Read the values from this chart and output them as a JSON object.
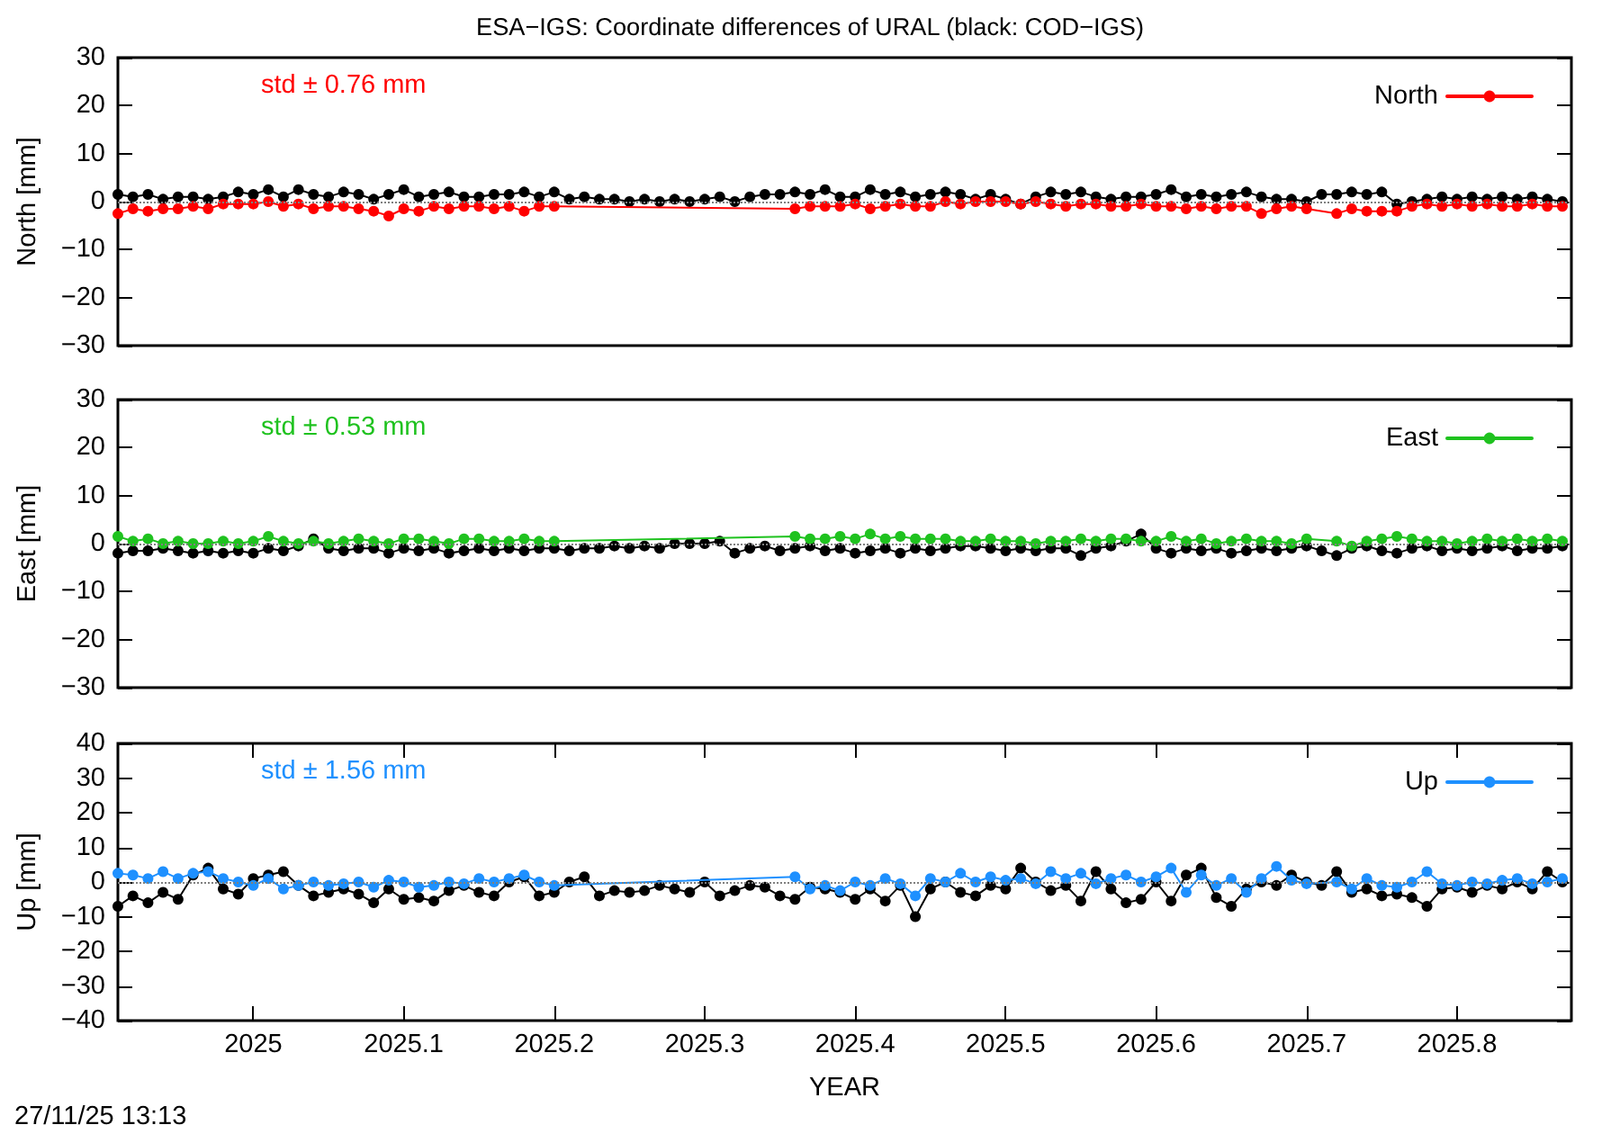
{
  "chart_data": [
    {
      "type": "line",
      "title": "ESA−IGS: Coordinate differences of URAL (black: COD−IGS)",
      "ylabel": "North [mm]",
      "annotations": [
        "std ± 0.76 mm"
      ],
      "tick_labels": "y",
      "marker": "circle",
      "line_style": "solid",
      "legend": "top right",
      "xlim": [
        2024.91,
        2025.876
      ],
      "ylim": [
        -30,
        30
      ],
      "yticks": [
        -30,
        -20,
        -10,
        0,
        10,
        20,
        30
      ],
      "ref_lines": [
        {
          "axis": "y",
          "value": 0,
          "color": "#808080",
          "line_style": "dotted"
        }
      ],
      "x": [
        2024.91,
        2024.92,
        2024.93,
        2024.94,
        2024.95,
        2024.96,
        2024.97,
        2024.98,
        2024.99,
        2025,
        2025.01,
        2025.02,
        2025.03,
        2025.04,
        2025.05,
        2025.06,
        2025.07,
        2025.08,
        2025.09,
        2025.1,
        2025.11,
        2025.12,
        2025.13,
        2025.14,
        2025.15,
        2025.16,
        2025.17,
        2025.18,
        2025.19,
        2025.2,
        2025.21,
        2025.22,
        2025.23,
        2025.24,
        2025.25,
        2025.26,
        2025.27,
        2025.28,
        2025.29,
        2025.3,
        2025.31,
        2025.32,
        2025.33,
        2025.34,
        2025.35,
        2025.36,
        2025.37,
        2025.38,
        2025.39,
        2025.4,
        2025.41,
        2025.42,
        2025.43,
        2025.44,
        2025.45,
        2025.46,
        2025.47,
        2025.48,
        2025.49,
        2025.5,
        2025.51,
        2025.52,
        2025.53,
        2025.54,
        2025.55,
        2025.56,
        2025.57,
        2025.58,
        2025.59,
        2025.6,
        2025.61,
        2025.62,
        2025.63,
        2025.64,
        2025.65,
        2025.66,
        2025.67,
        2025.68,
        2025.69,
        2025.7,
        2025.71,
        2025.72,
        2025.73,
        2025.74,
        2025.75,
        2025.76,
        2025.77,
        2025.78,
        2025.79,
        2025.8,
        2025.81,
        2025.82,
        2025.83,
        2025.84,
        2025.85,
        2025.86,
        2025.87
      ],
      "series": [
        {
          "color": "#000000",
          "values": [
            1.5,
            1,
            1.5,
            0.5,
            1,
            1,
            0.5,
            1,
            2,
            1.5,
            2.5,
            1,
            2.5,
            1.5,
            1,
            2,
            1.5,
            0.5,
            1.5,
            2.5,
            1,
            1.5,
            2,
            1,
            1,
            1.5,
            1.5,
            2,
            1,
            2,
            0.5,
            1,
            0.5,
            0.5,
            0,
            0.5,
            0,
            0.5,
            0,
            0.5,
            1,
            0,
            1,
            1.5,
            1.5,
            2,
            1.5,
            2.5,
            1,
            1,
            2.5,
            1.5,
            2,
            1,
            1.5,
            2,
            1.5,
            0.5,
            1.5,
            0.5,
            -0.5,
            1,
            2,
            1.5,
            2,
            1,
            0.5,
            1,
            1,
            1.5,
            2.5,
            1,
            1.5,
            1,
            1.5,
            2,
            1,
            0.5,
            0.5,
            0,
            1.5,
            1.5,
            2,
            1.5,
            2,
            -0.5,
            0,
            0.5,
            1,
            0.5,
            1,
            0.5,
            1,
            0.5,
            1,
            0.5,
            0
          ]
        },
        {
          "name": "North",
          "color": "#ff0000",
          "x": [
            2024.91,
            2024.92,
            2024.93,
            2024.94,
            2024.95,
            2024.96,
            2024.97,
            2024.98,
            2024.99,
            2025,
            2025.01,
            2025.02,
            2025.03,
            2025.04,
            2025.05,
            2025.06,
            2025.07,
            2025.08,
            2025.09,
            2025.1,
            2025.11,
            2025.12,
            2025.13,
            2025.14,
            2025.15,
            2025.16,
            2025.17,
            2025.18,
            2025.19,
            2025.2,
            2025.36,
            2025.37,
            2025.38,
            2025.39,
            2025.4,
            2025.41,
            2025.42,
            2025.43,
            2025.44,
            2025.45,
            2025.46,
            2025.47,
            2025.48,
            2025.49,
            2025.5,
            2025.51,
            2025.52,
            2025.53,
            2025.54,
            2025.55,
            2025.56,
            2025.57,
            2025.58,
            2025.59,
            2025.6,
            2025.61,
            2025.62,
            2025.63,
            2025.64,
            2025.65,
            2025.66,
            2025.67,
            2025.68,
            2025.69,
            2025.7,
            2025.72,
            2025.73,
            2025.74,
            2025.75,
            2025.76,
            2025.77,
            2025.78,
            2025.79,
            2025.8,
            2025.81,
            2025.82,
            2025.83,
            2025.84,
            2025.85,
            2025.86,
            2025.87
          ],
          "values": [
            -2.5,
            -1.5,
            -2,
            -1.5,
            -1.5,
            -1,
            -1.5,
            -0.5,
            -0.5,
            -0.5,
            0,
            -1,
            -0.5,
            -1.5,
            -1,
            -1,
            -1.5,
            -2,
            -3,
            -1.5,
            -2,
            -1,
            -1.5,
            -1,
            -1,
            -1.5,
            -1,
            -2,
            -1,
            -1,
            -1.5,
            -1,
            -1,
            -1,
            -0.5,
            -1.5,
            -1,
            -0.5,
            -1,
            -1,
            0,
            -0.5,
            0,
            0,
            0,
            -0.5,
            0,
            -0.5,
            -1,
            -0.5,
            -0.5,
            -1,
            -1,
            -0.5,
            -1,
            -1,
            -1.5,
            -1,
            -1.5,
            -1,
            -1,
            -2.5,
            -1.5,
            -1,
            -1.5,
            -2.5,
            -1.5,
            -2,
            -2,
            -2,
            -1,
            -0.5,
            -1,
            -0.5,
            -1,
            -0.5,
            -1,
            -1,
            -0.5,
            -1,
            -1
          ]
        }
      ]
    },
    {
      "type": "line",
      "ylabel": "East [mm]",
      "annotations": [
        "std ± 0.53 mm"
      ],
      "tick_labels": "y",
      "marker": "circle",
      "line_style": "solid",
      "legend": "top right",
      "xlim": [
        2024.91,
        2025.876
      ],
      "ylim": [
        -30,
        30
      ],
      "yticks": [
        -30,
        -20,
        -10,
        0,
        10,
        20,
        30
      ],
      "ref_lines": [
        {
          "axis": "y",
          "value": 0,
          "color": "#808080",
          "line_style": "dotted"
        }
      ],
      "x": [
        2024.91,
        2024.92,
        2024.93,
        2024.94,
        2024.95,
        2024.96,
        2024.97,
        2024.98,
        2024.99,
        2025,
        2025.01,
        2025.02,
        2025.03,
        2025.04,
        2025.05,
        2025.06,
        2025.07,
        2025.08,
        2025.09,
        2025.1,
        2025.11,
        2025.12,
        2025.13,
        2025.14,
        2025.15,
        2025.16,
        2025.17,
        2025.18,
        2025.19,
        2025.2,
        2025.21,
        2025.22,
        2025.23,
        2025.24,
        2025.25,
        2025.26,
        2025.27,
        2025.28,
        2025.29,
        2025.3,
        2025.31,
        2025.32,
        2025.33,
        2025.34,
        2025.35,
        2025.36,
        2025.37,
        2025.38,
        2025.39,
        2025.4,
        2025.41,
        2025.42,
        2025.43,
        2025.44,
        2025.45,
        2025.46,
        2025.47,
        2025.48,
        2025.49,
        2025.5,
        2025.51,
        2025.52,
        2025.53,
        2025.54,
        2025.55,
        2025.56,
        2025.57,
        2025.58,
        2025.59,
        2025.6,
        2025.61,
        2025.62,
        2025.63,
        2025.64,
        2025.65,
        2025.66,
        2025.67,
        2025.68,
        2025.69,
        2025.7,
        2025.71,
        2025.72,
        2025.73,
        2025.74,
        2025.75,
        2025.76,
        2025.77,
        2025.78,
        2025.79,
        2025.8,
        2025.81,
        2025.82,
        2025.83,
        2025.84,
        2025.85,
        2025.86,
        2025.87
      ],
      "series": [
        {
          "color": "#000000",
          "values": [
            -2,
            -1.5,
            -1.5,
            -1,
            -1.5,
            -2,
            -1.5,
            -2,
            -1.5,
            -2,
            -1,
            -1.5,
            -0.5,
            1,
            -1,
            -1.5,
            -1,
            -1,
            -2,
            -1,
            -1.5,
            -1,
            -2,
            -1.5,
            -1,
            -1.5,
            -1,
            -1.5,
            -1,
            -1,
            -1.5,
            -1,
            -1,
            -0.5,
            -1,
            -0.5,
            -1,
            0,
            0,
            0,
            0.5,
            -2,
            -1,
            -0.5,
            -1.5,
            -1,
            -0.5,
            -1.5,
            -1,
            -2,
            -1.5,
            -1,
            -2,
            -1,
            -1.5,
            -1,
            -0.5,
            -0.5,
            -1,
            -1.5,
            -1,
            -1.5,
            -1,
            -1,
            -2.5,
            -1,
            -0.5,
            0.5,
            2,
            -1,
            -2,
            -1,
            -1.5,
            -1,
            -2,
            -1.5,
            -1,
            -1.5,
            -1,
            -0.5,
            -1.5,
            -2.5,
            -1,
            -0.5,
            -1.5,
            -2,
            -1,
            -0.5,
            -1.5,
            -1,
            -1.5,
            -1,
            -0.5,
            -1.5,
            -1,
            -1,
            -0.5
          ]
        },
        {
          "name": "East",
          "color": "#1fc21f",
          "x": [
            2024.91,
            2024.92,
            2024.93,
            2024.94,
            2024.95,
            2024.96,
            2024.97,
            2024.98,
            2024.99,
            2025,
            2025.01,
            2025.02,
            2025.03,
            2025.04,
            2025.05,
            2025.06,
            2025.07,
            2025.08,
            2025.09,
            2025.1,
            2025.11,
            2025.12,
            2025.13,
            2025.14,
            2025.15,
            2025.16,
            2025.17,
            2025.18,
            2025.19,
            2025.2,
            2025.36,
            2025.37,
            2025.38,
            2025.39,
            2025.4,
            2025.41,
            2025.42,
            2025.43,
            2025.44,
            2025.45,
            2025.46,
            2025.47,
            2025.48,
            2025.49,
            2025.5,
            2025.51,
            2025.52,
            2025.53,
            2025.54,
            2025.55,
            2025.56,
            2025.57,
            2025.58,
            2025.59,
            2025.6,
            2025.61,
            2025.62,
            2025.63,
            2025.64,
            2025.65,
            2025.66,
            2025.67,
            2025.68,
            2025.69,
            2025.7,
            2025.72,
            2025.73,
            2025.74,
            2025.75,
            2025.76,
            2025.77,
            2025.78,
            2025.79,
            2025.8,
            2025.81,
            2025.82,
            2025.83,
            2025.84,
            2025.85,
            2025.86,
            2025.87
          ],
          "values": [
            1.5,
            0.5,
            1,
            0,
            0.5,
            0,
            0,
            0.5,
            0,
            0.5,
            1.5,
            0.5,
            0,
            0.5,
            0,
            0.5,
            1,
            0.5,
            0,
            1,
            1,
            0.5,
            0,
            1,
            1,
            0.5,
            0.5,
            1,
            0.5,
            0.5,
            1.5,
            1,
            1,
            1.5,
            1,
            2,
            1,
            1.5,
            1,
            1,
            1,
            0.5,
            0.5,
            1,
            0.5,
            0.5,
            0,
            0.5,
            0.5,
            1,
            0.5,
            1,
            1,
            0.5,
            0.5,
            1.5,
            0.5,
            1,
            0,
            0.5,
            1,
            0.5,
            0.5,
            0,
            1,
            0.5,
            -0.5,
            0.5,
            1,
            1.5,
            1,
            0.5,
            0.5,
            0,
            0.5,
            1,
            0.5,
            1,
            0.5,
            1,
            0.5
          ]
        }
      ]
    },
    {
      "type": "line",
      "xlabel": "YEAR",
      "ylabel": "Up [mm]",
      "annotations": [
        "std ± 1.56 mm",
        "27/11/25 13:13"
      ],
      "marker": "circle",
      "line_style": "solid",
      "legend": "top right",
      "xlim": [
        2024.91,
        2025.876
      ],
      "xticks": [
        2025,
        2025.1,
        2025.2,
        2025.3,
        2025.4,
        2025.5,
        2025.6,
        2025.7,
        2025.8
      ],
      "ylim": [
        -40,
        40
      ],
      "yticks": [
        -40,
        -30,
        -20,
        -10,
        0,
        10,
        20,
        30,
        40
      ],
      "ref_lines": [
        {
          "axis": "y",
          "value": 0,
          "color": "#808080",
          "line_style": "dotted"
        }
      ],
      "x": [
        2024.91,
        2024.92,
        2024.93,
        2024.94,
        2024.95,
        2024.96,
        2024.97,
        2024.98,
        2024.99,
        2025,
        2025.01,
        2025.02,
        2025.03,
        2025.04,
        2025.05,
        2025.06,
        2025.07,
        2025.08,
        2025.09,
        2025.1,
        2025.11,
        2025.12,
        2025.13,
        2025.14,
        2025.15,
        2025.16,
        2025.17,
        2025.18,
        2025.19,
        2025.2,
        2025.21,
        2025.22,
        2025.23,
        2025.24,
        2025.25,
        2025.26,
        2025.27,
        2025.28,
        2025.29,
        2025.3,
        2025.31,
        2025.32,
        2025.33,
        2025.34,
        2025.35,
        2025.36,
        2025.37,
        2025.38,
        2025.39,
        2025.4,
        2025.41,
        2025.42,
        2025.43,
        2025.44,
        2025.45,
        2025.46,
        2025.47,
        2025.48,
        2025.49,
        2025.5,
        2025.51,
        2025.52,
        2025.53,
        2025.54,
        2025.55,
        2025.56,
        2025.57,
        2025.58,
        2025.59,
        2025.6,
        2025.61,
        2025.62,
        2025.63,
        2025.64,
        2025.65,
        2025.66,
        2025.67,
        2025.68,
        2025.69,
        2025.7,
        2025.71,
        2025.72,
        2025.73,
        2025.74,
        2025.75,
        2025.76,
        2025.77,
        2025.78,
        2025.79,
        2025.8,
        2025.81,
        2025.82,
        2025.83,
        2025.84,
        2025.85,
        2025.86,
        2025.87
      ],
      "series": [
        {
          "color": "#000000",
          "values": [
            -7,
            -4,
            -6,
            -3,
            -5,
            2,
            4,
            -2,
            -3.5,
            1,
            2,
            3,
            -1,
            -4,
            -3,
            -2,
            -3.5,
            -6,
            -2,
            -5,
            -4.5,
            -5.5,
            -2.5,
            -1,
            -3,
            -4,
            0,
            1.5,
            -4,
            -3,
            0,
            1.5,
            -4,
            -2.5,
            -3,
            -2.5,
            -1,
            -2,
            -3,
            0,
            -4,
            -2.5,
            -1,
            -1.5,
            -4,
            -5,
            -1.5,
            -2,
            -3,
            -5,
            -2,
            -5.5,
            -1,
            -10,
            -2,
            0,
            -3,
            -4,
            -1,
            -2,
            4,
            0,
            -2.5,
            -1,
            -5.5,
            3,
            -2,
            -6,
            -5,
            0,
            -5.5,
            2,
            4,
            -4.5,
            -7,
            -2,
            0,
            -1,
            2,
            0,
            -1,
            3,
            -3,
            -2,
            -4,
            -3.5,
            -4.5,
            -7,
            -2,
            -1.5,
            -3,
            -1,
            -2,
            0,
            -2,
            3,
            0
          ]
        },
        {
          "name": "Up",
          "color": "#1e90ff",
          "x": [
            2024.91,
            2024.92,
            2024.93,
            2024.94,
            2024.95,
            2024.96,
            2024.97,
            2024.98,
            2024.99,
            2025,
            2025.01,
            2025.02,
            2025.03,
            2025.04,
            2025.05,
            2025.06,
            2025.07,
            2025.08,
            2025.09,
            2025.1,
            2025.11,
            2025.12,
            2025.13,
            2025.14,
            2025.15,
            2025.16,
            2025.17,
            2025.18,
            2025.19,
            2025.2,
            2025.36,
            2025.37,
            2025.38,
            2025.39,
            2025.4,
            2025.41,
            2025.42,
            2025.43,
            2025.44,
            2025.45,
            2025.46,
            2025.47,
            2025.48,
            2025.49,
            2025.5,
            2025.51,
            2025.52,
            2025.53,
            2025.54,
            2025.55,
            2025.56,
            2025.57,
            2025.58,
            2025.59,
            2025.6,
            2025.61,
            2025.62,
            2025.63,
            2025.64,
            2025.65,
            2025.66,
            2025.67,
            2025.68,
            2025.69,
            2025.7,
            2025.72,
            2025.73,
            2025.74,
            2025.75,
            2025.76,
            2025.77,
            2025.78,
            2025.79,
            2025.8,
            2025.81,
            2025.82,
            2025.83,
            2025.84,
            2025.85,
            2025.86,
            2025.87
          ],
          "values": [
            2.5,
            2,
            1,
            3,
            1,
            2.5,
            3,
            1,
            0,
            -1,
            1,
            -2,
            -1,
            0,
            -1,
            -0.5,
            0,
            -1.5,
            0.5,
            0,
            -1.5,
            -1,
            0,
            -0.5,
            1,
            0,
            1,
            2,
            0,
            -1,
            1.5,
            -2,
            -1,
            -2.5,
            0,
            -1,
            1,
            -0.5,
            -4,
            1,
            0,
            2.5,
            0,
            1.5,
            0.5,
            1,
            -0.5,
            3,
            1,
            2.5,
            -0.5,
            1,
            2,
            0,
            1.5,
            4,
            -3,
            2,
            -1,
            1,
            -3,
            1,
            4.5,
            0.5,
            -0.5,
            0,
            -2,
            1,
            -1,
            -1.5,
            0,
            3,
            -0.5,
            -1,
            0,
            -0.5,
            0.5,
            1,
            -0.5,
            0,
            1
          ]
        }
      ]
    }
  ]
}
